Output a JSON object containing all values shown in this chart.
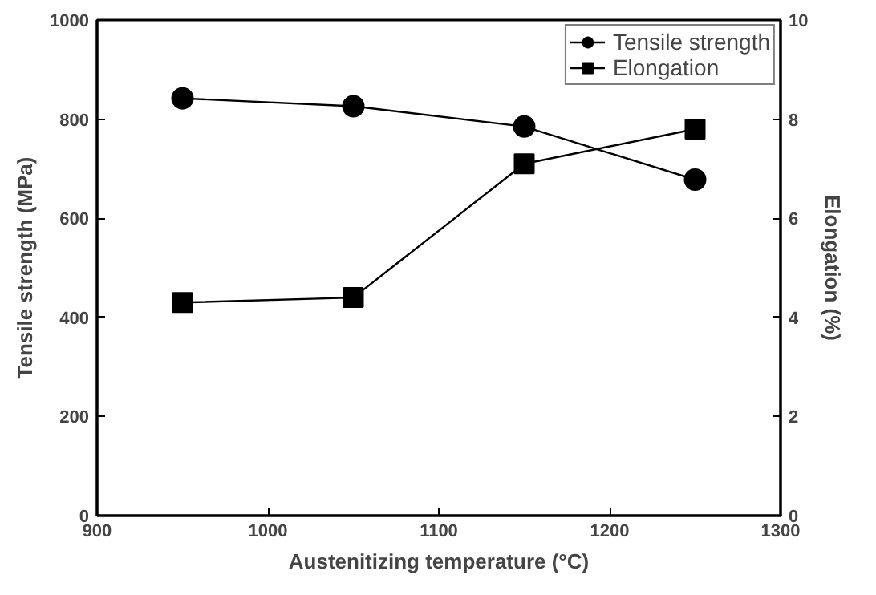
{
  "chart_data": {
    "type": "line",
    "xlabel": "Austenitizing temperature (°C)",
    "ylabel": "Tensile strength (MPa)",
    "y2label": "Elongation (%)",
    "x": [
      950,
      1050,
      1150,
      1250
    ],
    "series": [
      {
        "name": "Tensile strength",
        "color": "#000000",
        "marker": "circle",
        "values": [
          842,
          826,
          785,
          678
        ]
      },
      {
        "name": "Elongation",
        "color": "#000000",
        "marker": "square",
        "axis": "y2",
        "values": [
          4.3,
          4.4,
          7.1,
          7.8
        ]
      }
    ],
    "xlim": [
      900,
      1300
    ],
    "xticks": [
      900,
      1000,
      1100,
      1200,
      1300
    ],
    "ylim": [
      0,
      1000
    ],
    "yticks": [
      0,
      200,
      400,
      600,
      800,
      1000
    ],
    "y2lim": [
      0,
      10
    ],
    "y2ticks": [
      0,
      2,
      4,
      6,
      8,
      10
    ],
    "legend": "top right",
    "grid": false,
    "line_style": "solid"
  }
}
